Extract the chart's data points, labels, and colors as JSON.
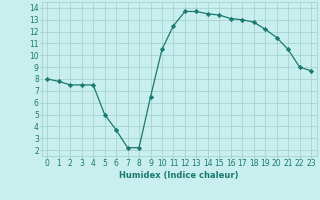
{
  "x": [
    0,
    1,
    2,
    3,
    4,
    5,
    6,
    7,
    8,
    9,
    10,
    11,
    12,
    13,
    14,
    15,
    16,
    17,
    18,
    19,
    20,
    21,
    22,
    23
  ],
  "y": [
    8,
    7.8,
    7.5,
    7.5,
    7.5,
    5,
    3.7,
    2.2,
    2.2,
    6.5,
    10.5,
    12.5,
    13.7,
    13.7,
    13.5,
    13.4,
    13.1,
    13.0,
    12.8,
    12.2,
    11.5,
    10.5,
    9.0,
    8.7
  ],
  "line_color": "#1a7a6e",
  "marker": "D",
  "marker_size": 2.2,
  "bg_color": "#c8eeed",
  "grid_color": "#a0ceca",
  "xlabel": "Humidex (Indice chaleur)",
  "xlim": [
    -0.5,
    23.5
  ],
  "ylim": [
    1.5,
    14.5
  ],
  "yticks": [
    2,
    3,
    4,
    5,
    6,
    7,
    8,
    9,
    10,
    11,
    12,
    13,
    14
  ],
  "xticks": [
    0,
    1,
    2,
    3,
    4,
    5,
    6,
    7,
    8,
    9,
    10,
    11,
    12,
    13,
    14,
    15,
    16,
    17,
    18,
    19,
    20,
    21,
    22,
    23
  ],
  "xtick_labels": [
    "0",
    "1",
    "2",
    "3",
    "4",
    "5",
    "6",
    "7",
    "8",
    "9",
    "10",
    "11",
    "12",
    "13",
    "14",
    "15",
    "16",
    "17",
    "18",
    "19",
    "20",
    "21",
    "22",
    "23"
  ],
  "tick_color": "#1a7a6e",
  "label_fontsize": 6,
  "tick_fontsize": 5.5
}
